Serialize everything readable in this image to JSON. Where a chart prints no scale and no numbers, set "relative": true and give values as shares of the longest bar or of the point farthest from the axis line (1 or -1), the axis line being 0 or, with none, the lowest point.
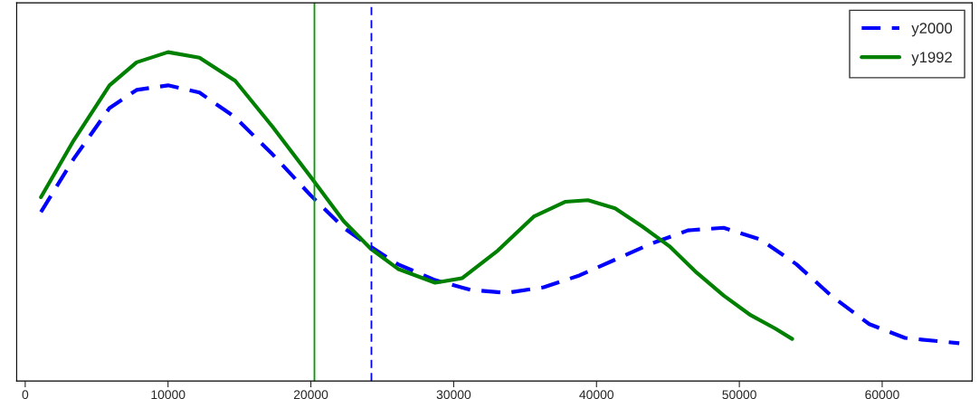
{
  "chart_data": {
    "type": "line",
    "relative": true,
    "tick_labels": "x",
    "grid": false,
    "legend": "top right",
    "xlim": [
      -600,
      66300
    ],
    "xticks": [
      0,
      10000,
      20000,
      30000,
      40000,
      50000,
      60000
    ],
    "series": [
      {
        "name": "y2000",
        "color": "#0000ff",
        "line_style": "dashed",
        "x": [
          1100,
          3400,
          5900,
          7800,
          10000,
          12200,
          14700,
          17300,
          20000,
          22300,
          24200,
          26100,
          28700,
          31200,
          33700,
          36300,
          38800,
          41300,
          43900,
          46400,
          48900,
          51500,
          54000,
          56500,
          59100,
          61600,
          65400
        ],
        "values": [
          0.514,
          0.676,
          0.83,
          0.885,
          0.899,
          0.877,
          0.802,
          0.69,
          0.564,
          0.466,
          0.408,
          0.355,
          0.307,
          0.277,
          0.268,
          0.285,
          0.321,
          0.369,
          0.419,
          0.458,
          0.466,
          0.43,
          0.355,
          0.257,
          0.173,
          0.131,
          0.115
        ]
      },
      {
        "name": "y1992",
        "color": "#008000",
        "line_style": "solid",
        "x": [
          1100,
          3400,
          5900,
          7800,
          10000,
          12200,
          14700,
          17300,
          20000,
          22300,
          24200,
          26100,
          28700,
          30600,
          33100,
          35600,
          37800,
          39400,
          41300,
          43200,
          45100,
          47000,
          48900,
          50800,
          52500,
          53700
        ],
        "values": [
          0.559,
          0.732,
          0.899,
          0.969,
          1.0,
          0.983,
          0.913,
          0.774,
          0.62,
          0.486,
          0.402,
          0.341,
          0.299,
          0.313,
          0.397,
          0.5,
          0.545,
          0.55,
          0.525,
          0.47,
          0.41,
          0.33,
          0.26,
          0.2,
          0.16,
          0.128
        ]
      }
    ],
    "ref_lines": [
      {
        "axis": "x",
        "value": 20250,
        "color": "#00a000",
        "line_style": "solid"
      },
      {
        "axis": "x",
        "value": 24240,
        "color": "#0000ff",
        "line_style": "dashed"
      }
    ]
  }
}
